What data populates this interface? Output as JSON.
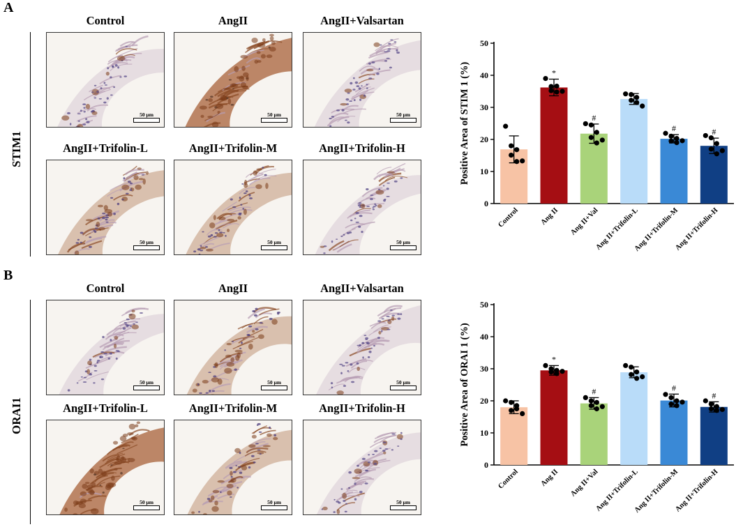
{
  "panels": [
    {
      "letter": "A",
      "row_label": "STIM1",
      "images": [
        {
          "title": "Control",
          "scale": "50 μm",
          "stain": "light"
        },
        {
          "title": "AngII",
          "scale": "50 μm",
          "stain": "heavy"
        },
        {
          "title": "AngII+Valsartan",
          "scale": "50 μm",
          "stain": "light"
        },
        {
          "title": "AngII+Trifolin-L",
          "scale": "50 μm",
          "stain": "medium"
        },
        {
          "title": "AngII+Trifolin-M",
          "scale": "50 μm",
          "stain": "medium"
        },
        {
          "title": "AngII+Trifolin-H",
          "scale": "50 μm",
          "stain": "light"
        }
      ]
    },
    {
      "letter": "B",
      "row_label": "ORAI1",
      "images": [
        {
          "title": "Control",
          "scale": "50 μm",
          "stain": "light"
        },
        {
          "title": "AngII",
          "scale": "50 μm",
          "stain": "medium"
        },
        {
          "title": "AngII+Valsartan",
          "scale": "50 μm",
          "stain": "light"
        },
        {
          "title": "AngII+Trifolin-L",
          "scale": "50 μm",
          "stain": "heavy"
        },
        {
          "title": "AngII+Trifolin-M",
          "scale": "50 μm",
          "stain": "medium"
        },
        {
          "title": "AngII+Trifolin-H",
          "scale": "50 μm",
          "stain": "light"
        }
      ]
    }
  ],
  "chart_data": [
    {
      "type": "bar",
      "ylabel": "Positive Area of STIM 1 (%)",
      "ylim": [
        0,
        50
      ],
      "yticks": [
        0,
        10,
        20,
        30,
        40,
        50
      ],
      "categories": [
        "Control",
        "Ang II",
        "Ang II+Val",
        "Ang II+Trifolin-L",
        "Ang II+Trifolin-M",
        "Ang II+Trifolin-H"
      ],
      "values": [
        16.9,
        36.2,
        21.8,
        32.6,
        20.2,
        18.0
      ],
      "errors": [
        4.2,
        2.6,
        3.0,
        1.7,
        1.3,
        2.4
      ],
      "colors": [
        "#f7c3a5",
        "#a50e13",
        "#a9d37a",
        "#b9dcf9",
        "#3a89d6",
        "#103f84"
      ],
      "annotations": [
        "",
        "*",
        "#",
        "",
        "#",
        "#"
      ],
      "points": [
        [
          24.1,
          18.0,
          16.8,
          15.1,
          13.1,
          13.3
        ],
        [
          39.0,
          36.5,
          36.6,
          35.2,
          34.8,
          35.0
        ],
        [
          24.9,
          24.5,
          22.2,
          20.6,
          18.9,
          19.8
        ],
        [
          34.2,
          34.0,
          33.1,
          32.2,
          31.5,
          30.4
        ],
        [
          21.9,
          21.0,
          20.3,
          19.5,
          19.0,
          19.6
        ],
        [
          21.2,
          20.5,
          18.7,
          17.0,
          15.5,
          16.5
        ]
      ]
    },
    {
      "type": "bar",
      "ylabel": "Positive Area of ORAI 1 (%)",
      "ylim": [
        0,
        50
      ],
      "yticks": [
        0,
        10,
        20,
        30,
        40,
        50
      ],
      "categories": [
        "Control",
        "Ang II",
        "Ang II+Val",
        "Ang II+Trifolin-L",
        "Ang II+Trifolin-M",
        "Ang II+Trifolin-H"
      ],
      "values": [
        18.0,
        29.5,
        19.2,
        28.9,
        20.1,
        18.1
      ],
      "errors": [
        2.0,
        1.5,
        1.8,
        1.7,
        2.0,
        1.6
      ],
      "colors": [
        "#f7c3a5",
        "#a50e13",
        "#a9d37a",
        "#b9dcf9",
        "#3a89d6",
        "#103f84"
      ],
      "annotations": [
        "",
        "*",
        "#",
        "",
        "#",
        "#"
      ],
      "points": [
        [
          20.0,
          19.5,
          17.5,
          17.0,
          18.5,
          16.0
        ],
        [
          31.0,
          30.0,
          29.5,
          29.0,
          28.5,
          29.2
        ],
        [
          21.0,
          20.0,
          19.5,
          18.5,
          17.5,
          18.2
        ],
        [
          31.0,
          30.5,
          29.0,
          28.2,
          27.0,
          27.5
        ],
        [
          22.0,
          21.0,
          20.0,
          19.0,
          18.5,
          19.6
        ],
        [
          20.0,
          19.0,
          18.2,
          17.5,
          17.0,
          17.3
        ]
      ]
    }
  ]
}
